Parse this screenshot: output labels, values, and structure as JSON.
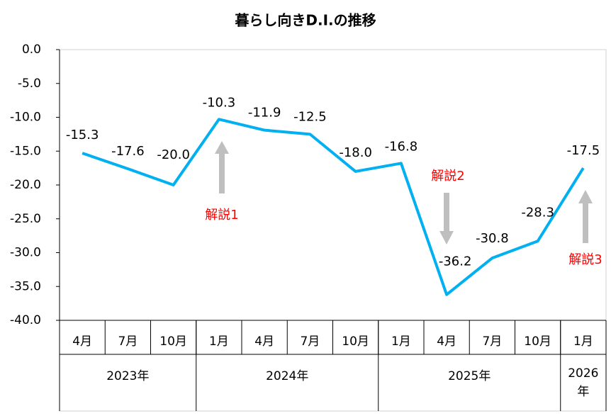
{
  "chart_data": {
    "type": "line",
    "title": "暮らし向きD.I.の推移",
    "categories": [
      "4月",
      "7月",
      "10月",
      "1月",
      "4月",
      "7月",
      "10月",
      "1月",
      "4月",
      "7月",
      "10月",
      "1月"
    ],
    "year_groups": [
      "2023年",
      "2024年",
      "2025年",
      "2026年"
    ],
    "series": [
      {
        "name": "暮らし向きD.I.",
        "color": "#00b0f0",
        "values": [
          -15.3,
          -17.6,
          -20.0,
          -10.3,
          -11.9,
          -12.5,
          -18.0,
          -16.8,
          -36.2,
          -30.8,
          -28.3,
          -17.5
        ],
        "value_labels": [
          "-15.3",
          "-17.6",
          "-20.0",
          "-10.3",
          "-11.9",
          "-12.5",
          "-18.0",
          "-16.8",
          "-36.2",
          "-30.8",
          "-28.3",
          "-17.5"
        ]
      }
    ],
    "ylim": [
      -40,
      0
    ],
    "yticks": [
      {
        "value": 0,
        "label": "0.0"
      },
      {
        "value": -5,
        "label": "-5.0"
      },
      {
        "value": -10,
        "label": "-10.0"
      },
      {
        "value": -15,
        "label": "-15.0"
      },
      {
        "value": -20,
        "label": "-20.0"
      },
      {
        "value": -25,
        "label": "-25.0"
      },
      {
        "value": -30,
        "label": "-30.0"
      },
      {
        "value": -35,
        "label": "-35.0"
      },
      {
        "value": -40,
        "label": "-40.0"
      }
    ],
    "annotations": [
      "解説1",
      "解説2",
      "解説3"
    ],
    "annotation_color": "#ff0000",
    "grid": false
  }
}
